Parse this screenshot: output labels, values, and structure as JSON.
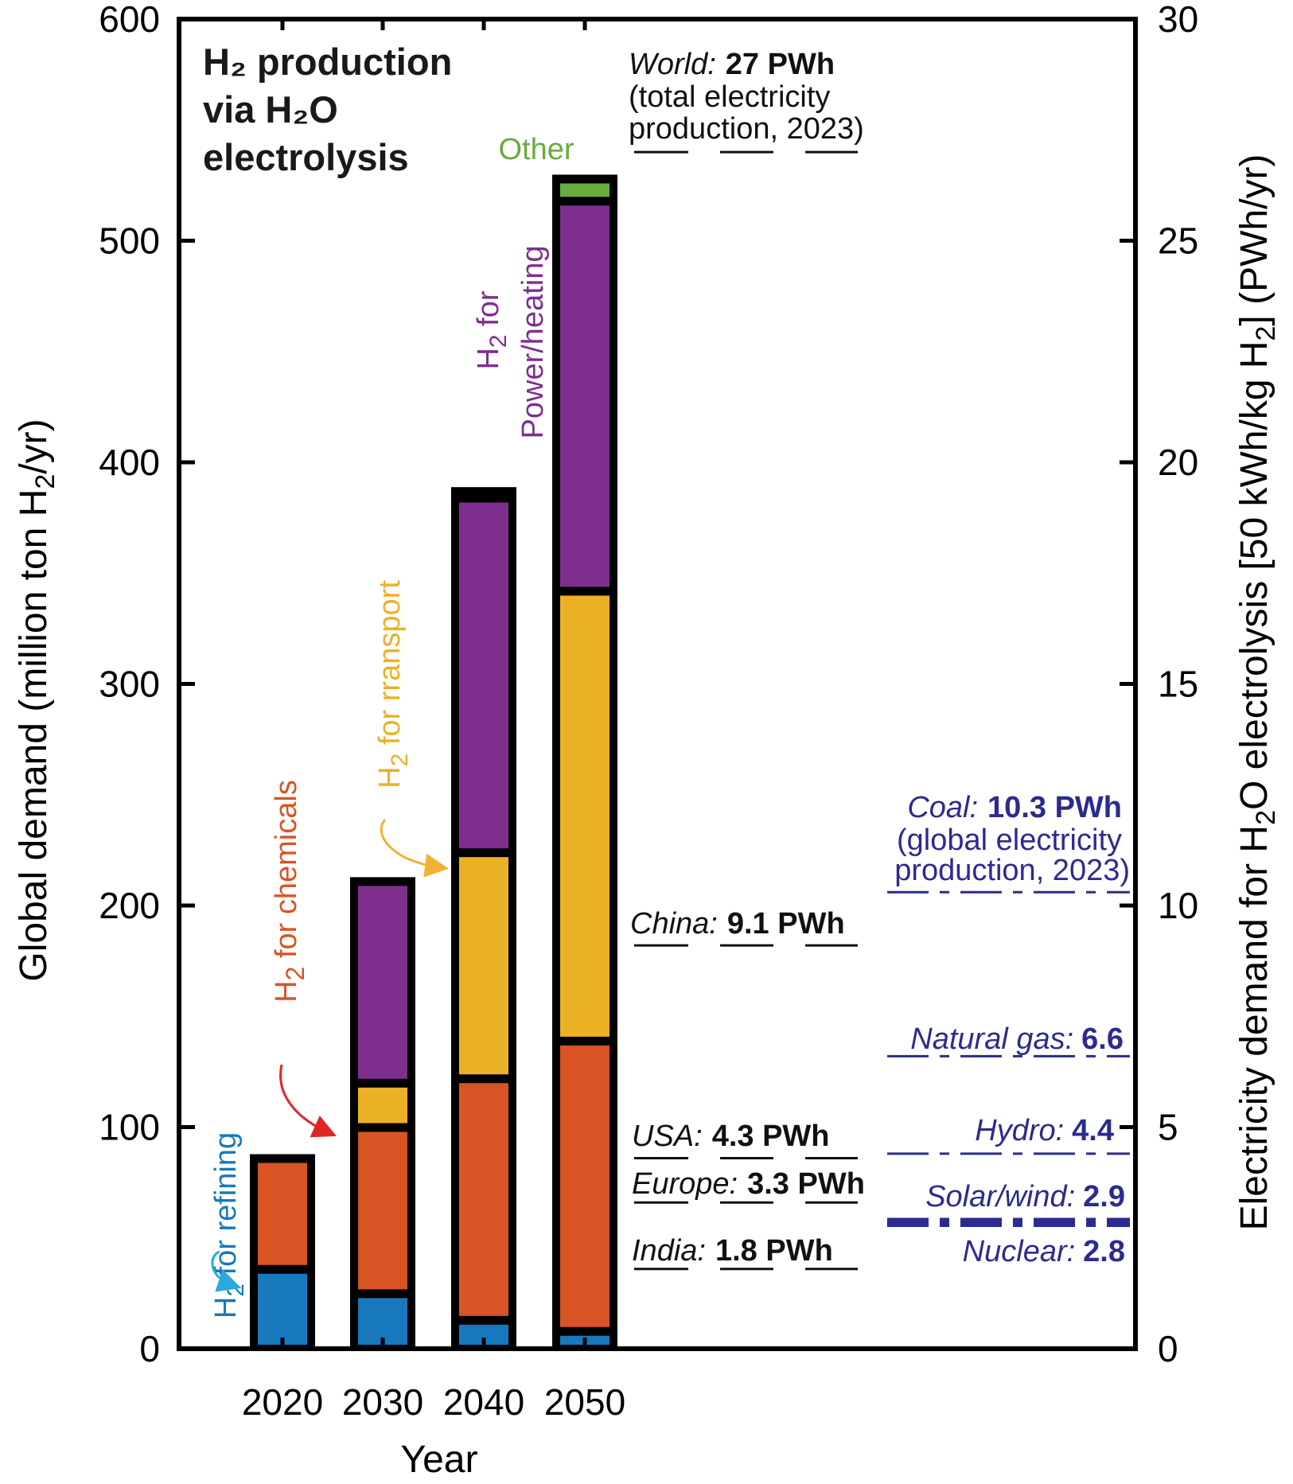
{
  "chart_data": {
    "type": "bar",
    "stacked": true,
    "title": [
      "H₂ production",
      "via H₂O",
      "electrolysis"
    ],
    "xlabel": "Year",
    "ylabel": "Global demand (million ton H2/yr)",
    "ylabel_parts": {
      "pre": "Global demand (million ton H",
      "sub": "2",
      "post": "/yr)"
    },
    "y2label_parts": {
      "pre": "Electricity demand for H",
      "sub1": "2",
      "mid": "O electrolysis [50 kWh/kg H",
      "sub2": "2",
      "post": "] (PWh/yr)"
    },
    "ylim": [
      0,
      600
    ],
    "y2lim": [
      0,
      30
    ],
    "yticks": [
      0,
      100,
      200,
      300,
      400,
      500,
      600
    ],
    "y2ticks": [
      0,
      5,
      10,
      15,
      20,
      25,
      30
    ],
    "categories": [
      "2020",
      "2030",
      "2040",
      "2050"
    ],
    "series": [
      {
        "name": "H2 for refining",
        "color": "#1878be",
        "values": [
          36,
          25,
          13,
          8
        ]
      },
      {
        "name": "H2 for chemicals",
        "color": "#d95424",
        "values": [
          50,
          75,
          109,
          131
        ]
      },
      {
        "name": "H2 for transport",
        "color": "#ebb125",
        "values": [
          0,
          20,
          102,
          203
        ]
      },
      {
        "name": "H2 for power/heating",
        "color": "#7e2f8e",
        "values": [
          0,
          91,
          160,
          176
        ]
      },
      {
        "name": "Other",
        "color": "#6aab3e",
        "values": [
          0,
          0,
          3,
          10
        ]
      }
    ],
    "series_labels": {
      "refining": {
        "h": "H",
        "sub": "2",
        "rest": " for refining"
      },
      "chemicals": {
        "h": "H",
        "sub": "2",
        "rest": " for chemicals"
      },
      "transport": {
        "h": "H",
        "sub": "2",
        "rest": " for rransport"
      },
      "power_l1": {
        "h": "H",
        "sub": "2",
        "rest": " for"
      },
      "power_l2": "Power/heating",
      "other": "Other"
    },
    "reference_lines_black": [
      {
        "label": "World:",
        "value_text": "27 PWh",
        "note": [
          "(total electricity",
          "production, 2023)"
        ],
        "pwh": 27
      },
      {
        "label": "China:",
        "value_text": "9.1 PWh",
        "pwh": 9.1
      },
      {
        "label": "USA:",
        "value_text": "4.3 PWh",
        "pwh": 4.3
      },
      {
        "label": "Europe:",
        "value_text": "3.3 PWh",
        "pwh": 3.3
      },
      {
        "label": "India:",
        "value_text": "1.8 PWh",
        "pwh": 1.8
      }
    ],
    "reference_lines_blue": [
      {
        "label": "Coal:",
        "value_text": "10.3 PWh",
        "note": [
          "(global electricity",
          "production, 2023)"
        ],
        "pwh": 10.3
      },
      {
        "label": "Natural gas:",
        "value_text": "6.6",
        "pwh": 6.6
      },
      {
        "label": "Hydro:",
        "value_text": "4.4",
        "pwh": 4.4
      },
      {
        "label": "Solar/wind:",
        "value_text": "2.9",
        "pwh": 2.9
      },
      {
        "label": "Nuclear:",
        "value_text": "2.8",
        "pwh": 2.8
      }
    ]
  },
  "colors": {
    "refining": "#1878be",
    "chemicals": "#d95424",
    "transport": "#ebb125",
    "power": "#7e2f8e",
    "other": "#6aab3e",
    "annotation_blue": "#2b2b8f",
    "arrow_refining": "#2aa8e0",
    "arrow_chemicals": "#e02525",
    "arrow_transport": "#f2b134"
  }
}
